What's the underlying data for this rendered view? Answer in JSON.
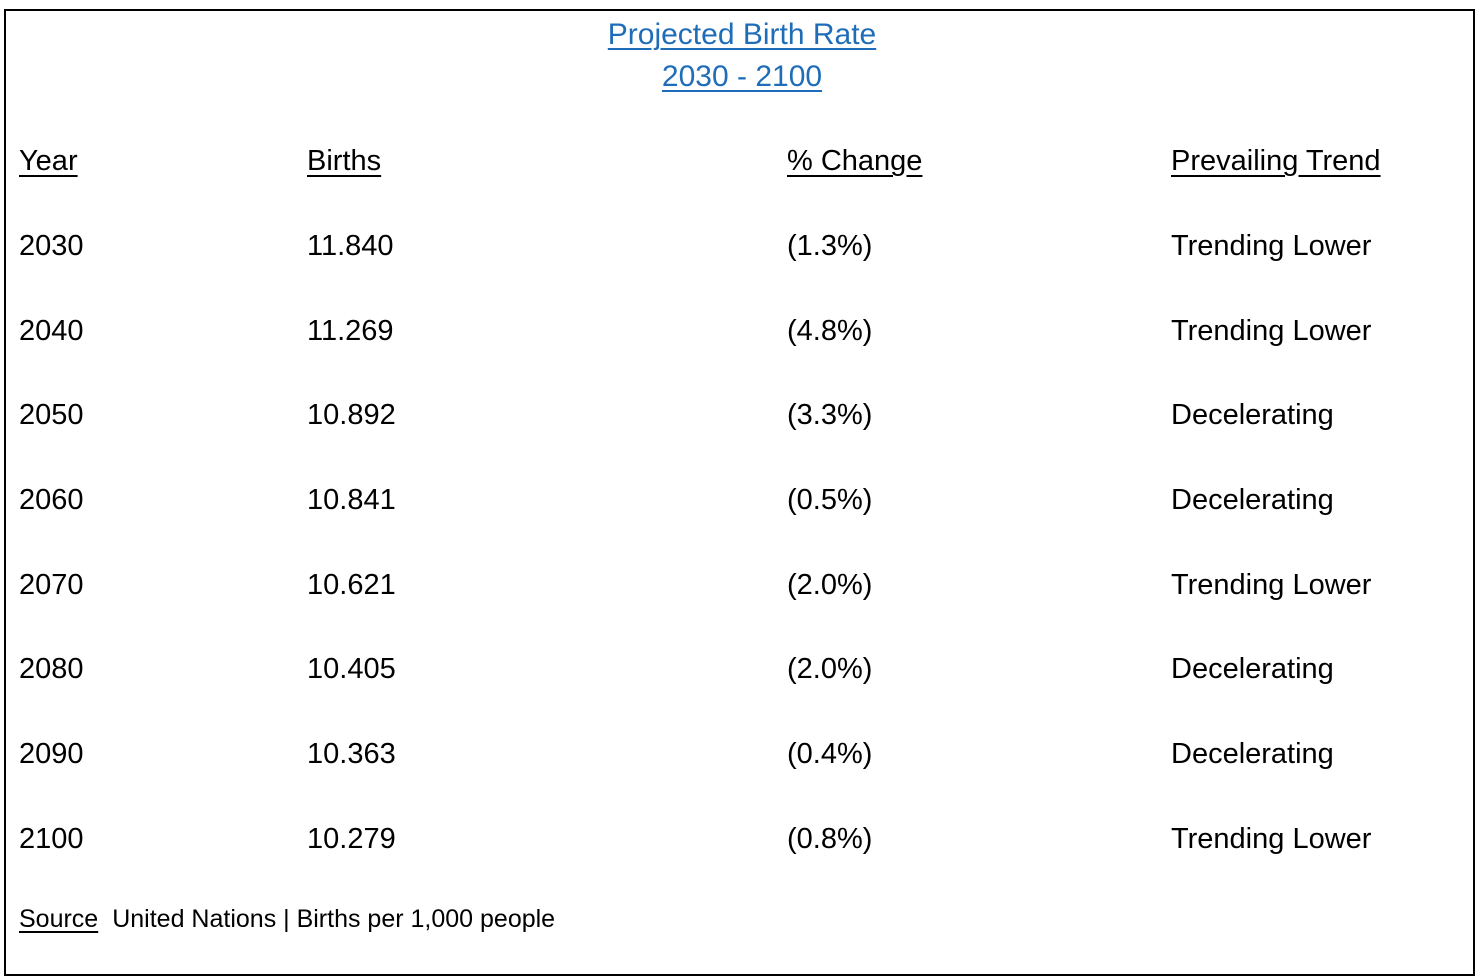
{
  "title": {
    "line1": "Projected Birth Rate",
    "line2": "2030 - 2100",
    "color": "#1f6db8"
  },
  "headers": {
    "year": "Year",
    "births": "Births",
    "change": "% Change",
    "trend": "Prevailing Trend"
  },
  "rows": [
    {
      "year": "2030",
      "births": "11.840",
      "change": "(1.3%)",
      "trend": "Trending Lower"
    },
    {
      "year": "2040",
      "births": "11.269",
      "change": "(4.8%)",
      "trend": "Trending Lower"
    },
    {
      "year": "2050",
      "births": "10.892",
      "change": "(3.3%)",
      "trend": "Decelerating"
    },
    {
      "year": "2060",
      "births": "10.841",
      "change": "(0.5%)",
      "trend": "Decelerating"
    },
    {
      "year": "2070",
      "births": "10.621",
      "change": "(2.0%)",
      "trend": "Trending Lower"
    },
    {
      "year": "2080",
      "births": "10.405",
      "change": "(2.0%)",
      "trend": "Decelerating"
    },
    {
      "year": "2090",
      "births": "10.363",
      "change": "(0.4%)",
      "trend": "Decelerating"
    },
    {
      "year": "2100",
      "births": "10.279",
      "change": "(0.8%)",
      "trend": "Trending Lower"
    }
  ],
  "footer": {
    "source_label": "Source",
    "source_text": "United Nations | Births per 1,000 people"
  }
}
